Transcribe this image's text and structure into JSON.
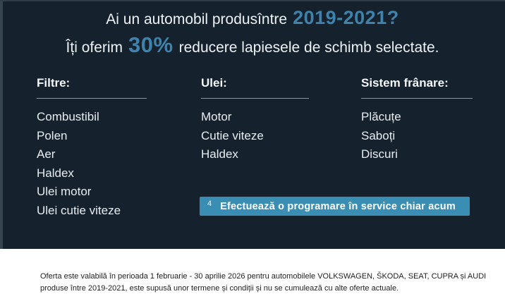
{
  "banner": {
    "headline": {
      "line1_prefix": "Ai un automobil produsîntre",
      "line1_highlight": "2019-2021?",
      "line2_prefix": "Îți oferim",
      "line2_highlight": "30%",
      "line2_suffix": "reducere lapiesele de schimb selectate."
    },
    "columns": [
      {
        "title": "Filtre:",
        "items": [
          "Combustibil",
          "Polen",
          "Aer",
          "Haldex",
          "Ulei motor",
          "Ulei cutie viteze"
        ]
      },
      {
        "title": "Ulei:",
        "items": [
          "Motor",
          "Cutie viteze",
          "Haldex"
        ]
      },
      {
        "title": "Sistem frânare:",
        "items": [
          "Plăcuțe",
          "Saboți",
          "Discuri"
        ]
      }
    ],
    "cta": {
      "footnote_marker": "4",
      "label": "Efectuează o programare în service chiar acum"
    }
  },
  "footer": {
    "line1": "Oferta este valabilă în perioada 1 februarie - 30 aprilie 2026 pentru automobilele VOLKSWAGEN, ŠKODA, SEAT, CUPRA și AUDI",
    "line2": "produse între 2019-2021, este supusă unor termene și condiții și nu se cumulează cu alte oferte actuale."
  },
  "colors": {
    "banner_background": "#15222E",
    "accent_blue": "#3F82AB",
    "cta_teal": "#3A8DB3",
    "light_text": "#ECF1F4",
    "underline": "#A0B7C4"
  }
}
